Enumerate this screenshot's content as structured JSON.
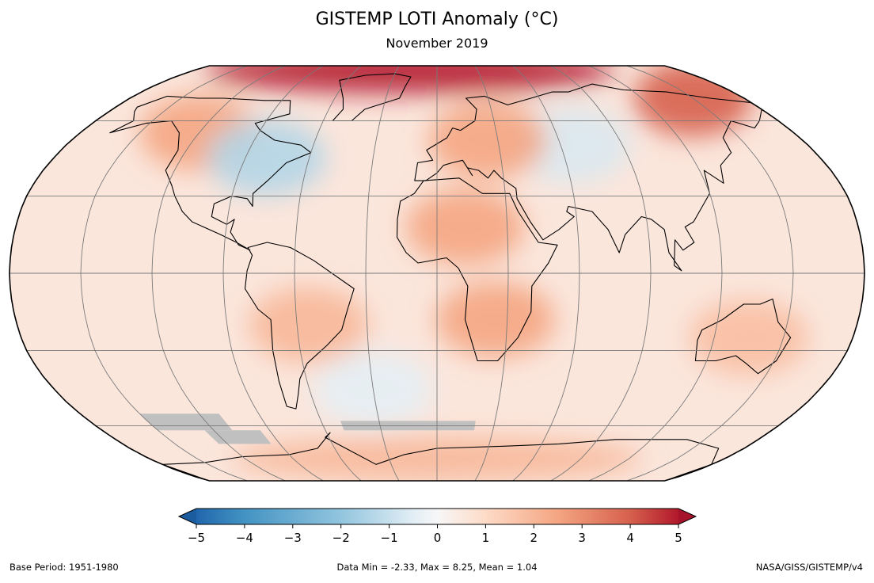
{
  "title": "GISTEMP LOTI Anomaly (°C)",
  "subtitle": "November 2019",
  "chart_data": {
    "type": "heatmap",
    "projection": "robinson",
    "variable": "LOTI temperature anomaly",
    "units": "°C",
    "colormap": "RdBu_r",
    "color_range": [
      -5,
      5
    ],
    "colorbar_ticks": [
      "−5",
      "−4",
      "−3",
      "−2",
      "−1",
      "0",
      "1",
      "2",
      "3",
      "4",
      "5"
    ],
    "colorbar_tick_values": [
      -5,
      -4,
      -3,
      -2,
      -1,
      0,
      1,
      2,
      3,
      4,
      5
    ],
    "colorbar_extend": "both",
    "missing_data_color": "#c0c0c0",
    "graticule": {
      "lon_step_deg": 30,
      "lat_step_deg": 30
    },
    "regions": [
      {
        "name": "Arctic",
        "lon": -20,
        "lat": 85,
        "anomaly": 5
      },
      {
        "name": "Western North America",
        "lon": -120,
        "lat": 55,
        "anomaly": 2.5
      },
      {
        "name": "Eastern North America",
        "lon": -80,
        "lat": 45,
        "anomaly": -1.5
      },
      {
        "name": "Central Asia",
        "lon": 65,
        "lat": 50,
        "anomaly": -0.8
      },
      {
        "name": "Eastern Europe",
        "lon": 25,
        "lat": 52,
        "anomaly": 2.5
      },
      {
        "name": "Siberia",
        "lon": 150,
        "lat": 70,
        "anomaly": 4
      },
      {
        "name": "North Africa",
        "lon": 12,
        "lat": 18,
        "anomaly": 2.5
      },
      {
        "name": "Southern Africa",
        "lon": 25,
        "lat": -18,
        "anomaly": 2.5
      },
      {
        "name": "Australia",
        "lon": 135,
        "lat": -25,
        "anomaly": 1.8
      },
      {
        "name": "South America",
        "lon": -55,
        "lat": -20,
        "anomaly": 2
      },
      {
        "name": "Southern Ocean",
        "lon": -30,
        "lat": -45,
        "anomaly": -0.5
      },
      {
        "name": "Antarctica coast",
        "lon": 0,
        "lat": -75,
        "anomaly": 2
      }
    ]
  },
  "footer": {
    "base_period": "Base Period: 1951-1980",
    "stats": "Data Min = -2.33, Max = 8.25, Mean = 1.04",
    "source": "NASA/GISS/GISTEMP/v4"
  }
}
